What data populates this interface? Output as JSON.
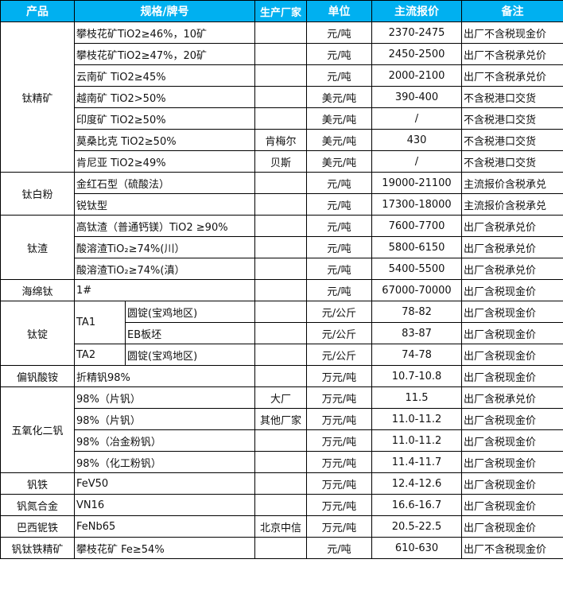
{
  "header": {
    "product": "产品",
    "spec": "规格/牌号",
    "producer": "生产厂家",
    "unit": "单位",
    "price": "主流报价",
    "note": "备注"
  },
  "header_color": "#00b0f0",
  "groups": [
    {
      "product": "钛精矿",
      "rows": [
        {
          "spec": "攀枝花矿TiO2≥46%，10矿",
          "producer": "",
          "unit": "元/吨",
          "price": "2370-2475",
          "note": "出厂不含税现金价"
        },
        {
          "spec": "攀枝花矿TiO2≥47%，20矿",
          "producer": "",
          "unit": "元/吨",
          "price": "2450-2500",
          "note": "出厂不含税承兑价"
        },
        {
          "spec": "云南矿 TiO2≥45%",
          "producer": "",
          "unit": "元/吨",
          "price": "2000-2100",
          "note": "出厂不含税承兑价"
        },
        {
          "spec": "越南矿 TiO2>50%",
          "producer": "",
          "unit": "美元/吨",
          "price": "390-400",
          "note": "不含税港口交货"
        },
        {
          "spec": "印度矿 TiO2≥50%",
          "producer": "",
          "unit": "美元/吨",
          "price": "/",
          "note": "不含税港口交货"
        },
        {
          "spec": "莫桑比克 TiO2≥50%",
          "producer": "肯梅尔",
          "unit": "美元/吨",
          "price": "430",
          "note": "不含税港口交货"
        },
        {
          "spec": "肯尼亚 TiO2≥49%",
          "producer": "贝斯",
          "unit": "美元/吨",
          "price": "/",
          "note": "不含税港口交货"
        }
      ]
    },
    {
      "product": "钛白粉",
      "rows": [
        {
          "spec": "金红石型（硫酸法）",
          "producer": "",
          "unit": "元/吨",
          "price": "19000-21100",
          "note": "主流报价含税承兑"
        },
        {
          "spec": "锐钛型",
          "producer": "",
          "unit": "元/吨",
          "price": "17300-18000",
          "note": "主流报价含税承兑"
        }
      ]
    },
    {
      "product": "钛渣",
      "rows": [
        {
          "spec": "高钛渣（普通钙镁）TiO2 ≥90%",
          "producer": "",
          "unit": "元/吨",
          "price": "7600-7700",
          "note": "出厂含税承兑价"
        },
        {
          "spec": "酸溶渣TiO₂≥74%(川）",
          "producer": "",
          "unit": "元/吨",
          "price": "5800-6150",
          "note": "出厂含税承兑价"
        },
        {
          "spec": "酸溶渣TiO₂≥74%(滇）",
          "producer": "",
          "unit": "元/吨",
          "price": "5400-5500",
          "note": "出厂含税承兑价"
        }
      ]
    },
    {
      "product": "海绵钛",
      "rows": [
        {
          "spec": "1#",
          "producer": "",
          "unit": "元/吨",
          "price": "67000-70000",
          "note": "出厂含税现金价"
        }
      ]
    },
    {
      "product": "钛锭",
      "rows": [
        {
          "grade": "TA1",
          "grade_span": 2,
          "spec": "圆锭(宝鸡地区)",
          "producer": "",
          "unit": "元/公斤",
          "price": "78-82",
          "note": "出厂含税现金价"
        },
        {
          "spec": "EB板坯",
          "producer": "",
          "unit": "元/公斤",
          "price": "83-87",
          "note": "出厂含税现金价"
        },
        {
          "grade": "TA2",
          "grade_span": 1,
          "spec": "圆锭(宝鸡地区)",
          "producer": "",
          "unit": "元/公斤",
          "price": "74-78",
          "note": "出厂含税现金价"
        }
      ]
    },
    {
      "product": "偏钒酸铵",
      "rows": [
        {
          "spec": "折精钒98%",
          "producer": "",
          "unit": "万元/吨",
          "price": "10.7-10.8",
          "note": "出厂含税现金价"
        }
      ]
    },
    {
      "product": "五氧化二钒",
      "rows": [
        {
          "spec": "98%（片钒）",
          "producer": "大厂",
          "unit": "万元/吨",
          "price": "11.5",
          "note": "出厂含税承兑价"
        },
        {
          "spec": "98%（片钒）",
          "producer": "其他厂家",
          "unit": "万元/吨",
          "price": "11.0-11.2",
          "note": "出厂含税现金价"
        },
        {
          "spec": "98%（冶金粉钒）",
          "producer": "",
          "unit": "万元/吨",
          "price": "11.0-11.2",
          "note": "出厂含税现金价"
        },
        {
          "spec": "98%（化工粉钒）",
          "producer": "",
          "unit": "万元/吨",
          "price": "11.4-11.7",
          "note": "出厂含税现金价"
        }
      ]
    },
    {
      "product": "钒铁",
      "rows": [
        {
          "spec": "FeV50",
          "producer": "",
          "unit": "万元/吨",
          "price": "12.4-12.6",
          "note": "出厂含税现金价"
        }
      ]
    },
    {
      "product": "钒氮合金",
      "rows": [
        {
          "spec": "VN16",
          "producer": "",
          "unit": "万元/吨",
          "price": "16.6-16.7",
          "note": "出厂含税现金价"
        }
      ]
    },
    {
      "product": "巴西铌铁",
      "rows": [
        {
          "spec": "FeNb65",
          "producer": "北京中信",
          "unit": "万元/吨",
          "price": "20.5-22.5",
          "note": "出厂含税现金价"
        }
      ]
    },
    {
      "product": "钒钛铁精矿",
      "rows": [
        {
          "spec": "攀枝花矿 Fe≥54%",
          "producer": "",
          "unit": "元/吨",
          "price": "610-630",
          "note": "出厂不含税现金价"
        }
      ]
    }
  ]
}
